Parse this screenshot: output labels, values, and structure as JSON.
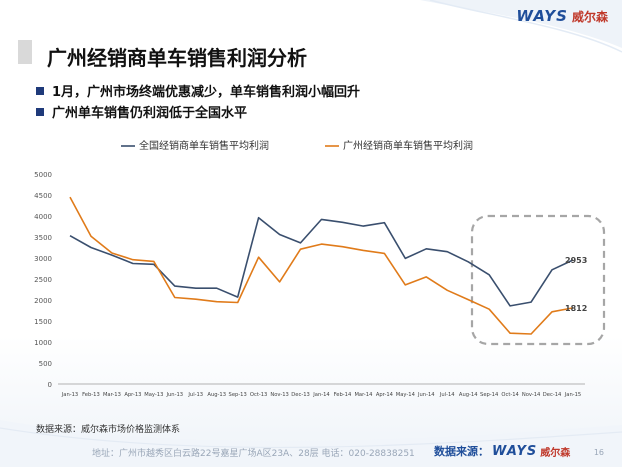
{
  "header": {
    "brand": "WAYS",
    "brand_cn": "威尔森"
  },
  "title": "广州经销商单车销售利润分析",
  "bullets": [
    "1月，广州市场终端优惠减少，单车销售利润小幅回升",
    "广州单车销售仍利润低于全国水平"
  ],
  "chart_data": {
    "type": "line",
    "title": "",
    "xlabel": "",
    "ylabel": "",
    "ylim": [
      0,
      5000
    ],
    "yticks": [
      0,
      500,
      1000,
      1500,
      2000,
      2500,
      3000,
      3500,
      4000,
      4500,
      5000
    ],
    "grid": false,
    "legend_position": "top",
    "categories": [
      "Jan-13",
      "Feb-13",
      "Mar-13",
      "Apr-13",
      "May-13",
      "Jun-13",
      "Jul-13",
      "Aug-13",
      "Sep-13",
      "Oct-13",
      "Nov-13",
      "Dec-13",
      "Jan-14",
      "Feb-14",
      "Mar-14",
      "Apr-14",
      "May-14",
      "Jun-14",
      "Jul-14",
      "Aug-14",
      "Sep-14",
      "Oct-14",
      "Nov-14",
      "Dec-14",
      "Jan-15"
    ],
    "series": [
      {
        "name": "全国经销商单车销售平均利润",
        "color": "#3a4f6e",
        "values": [
          3530,
          3250,
          3070,
          2870,
          2850,
          2330,
          2280,
          2280,
          2070,
          3960,
          3560,
          3360,
          3920,
          3850,
          3760,
          3840,
          2990,
          3220,
          3150,
          2910,
          2600,
          1860,
          1950,
          2720,
          2953
        ],
        "end_label": "2953"
      },
      {
        "name": "广州经销商单车销售平均利润",
        "color": "#e07b1a",
        "values": [
          4450,
          3520,
          3120,
          2960,
          2920,
          2060,
          2020,
          1960,
          1940,
          3020,
          2430,
          3210,
          3330,
          3270,
          3180,
          3110,
          2360,
          2550,
          2230,
          2010,
          1780,
          1210,
          1190,
          1720,
          1812
        ],
        "end_label": "1812"
      }
    ]
  },
  "source": "数据来源：威尔森市场价格监测体系",
  "footer": {
    "address": "地址：广州市越秀区白云路22号嘉星广场A区23A、28层   电话：020-28838251",
    "source_label": "数据来源：",
    "brand": "WAYS",
    "brand_cn": "威尔森",
    "page": "16"
  }
}
